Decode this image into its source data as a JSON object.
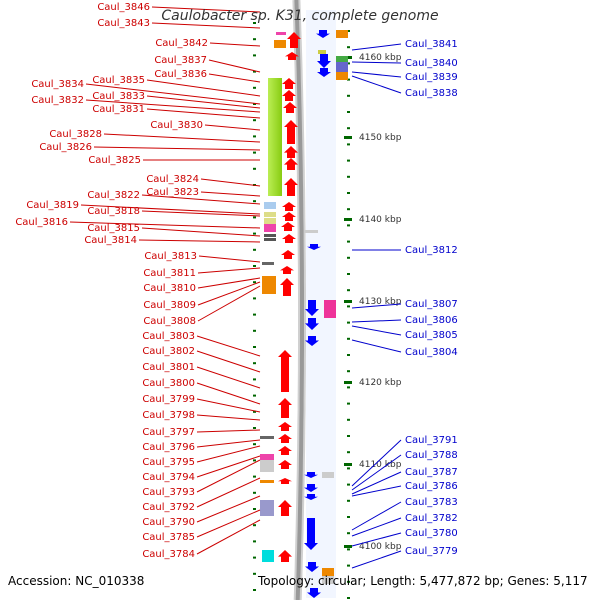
{
  "title": "Caulobacter sp. K31, complete genome",
  "footer": {
    "accession": "Accession: NC_010338",
    "topology": "Topology: circular; Length: 5,477,872 bp; Genes: 5,117"
  },
  "colors": {
    "left_label": "#cc0000",
    "right_label": "#0000cc",
    "forward_arrow": "#ff0000",
    "reverse_arrow": "#0000ff",
    "backbone": "#999999",
    "tick": "#006600"
  },
  "scale_labels": [
    "4160 kbp",
    "4150 kbp",
    "4140 kbp",
    "4130 kbp",
    "4120 kbp",
    "4110 kbp",
    "4100 kbp"
  ],
  "left_genes": [
    "Caul_3846",
    "Caul_3843",
    "Caul_3842",
    "Caul_3837",
    "Caul_3836",
    "Caul_3835",
    "Caul_3834",
    "Caul_3833",
    "Caul_3832",
    "Caul_3831",
    "Caul_3830",
    "Caul_3828",
    "Caul_3826",
    "Caul_3825",
    "Caul_3824",
    "Caul_3823",
    "Caul_3822",
    "Caul_3819",
    "Caul_3818",
    "Caul_3816",
    "Caul_3815",
    "Caul_3814",
    "Caul_3813",
    "Caul_3811",
    "Caul_3810",
    "Caul_3809",
    "Caul_3808",
    "Caul_3803",
    "Caul_3802",
    "Caul_3801",
    "Caul_3800",
    "Caul_3799",
    "Caul_3798",
    "Caul_3797",
    "Caul_3796",
    "Caul_3795",
    "Caul_3794",
    "Caul_3793",
    "Caul_3792",
    "Caul_3790",
    "Caul_3785",
    "Caul_3784"
  ],
  "right_genes": [
    "Caul_3841",
    "Caul_3840",
    "Caul_3839",
    "Caul_3838",
    "Caul_3812",
    "Caul_3807",
    "Caul_3806",
    "Caul_3805",
    "Caul_3804",
    "Caul_3791",
    "Caul_3788",
    "Caul_3787",
    "Caul_3786",
    "Caul_3783",
    "Caul_3782",
    "Caul_3780",
    "Caul_3779"
  ]
}
